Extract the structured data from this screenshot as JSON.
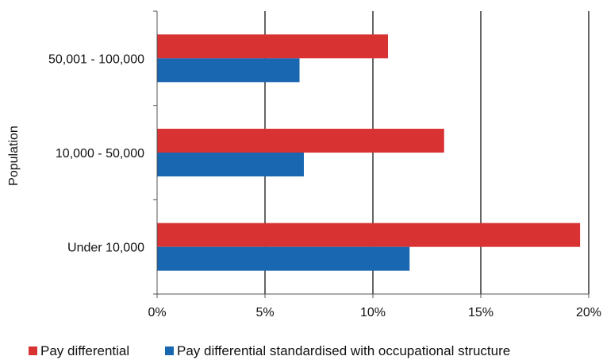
{
  "chart_data": {
    "type": "bar",
    "orientation": "horizontal",
    "ylabel": "Population",
    "categories": [
      "Under 10,000",
      "10,000 - 50,000",
      "50,001 - 100,000"
    ],
    "series": [
      {
        "name": "Pay differential",
        "color": "#d93232",
        "values": [
          19.6,
          13.3,
          10.7
        ]
      },
      {
        "name": "Pay differential standardised with occupational structure",
        "color": "#1a67b1",
        "values": [
          11.7,
          6.8,
          6.6
        ]
      }
    ],
    "xticks": [
      "0%",
      "5%",
      "10%",
      "15%",
      "20%"
    ],
    "xlim": [
      0,
      20
    ],
    "grid": {
      "vertical": true
    },
    "legend": "bottom"
  }
}
